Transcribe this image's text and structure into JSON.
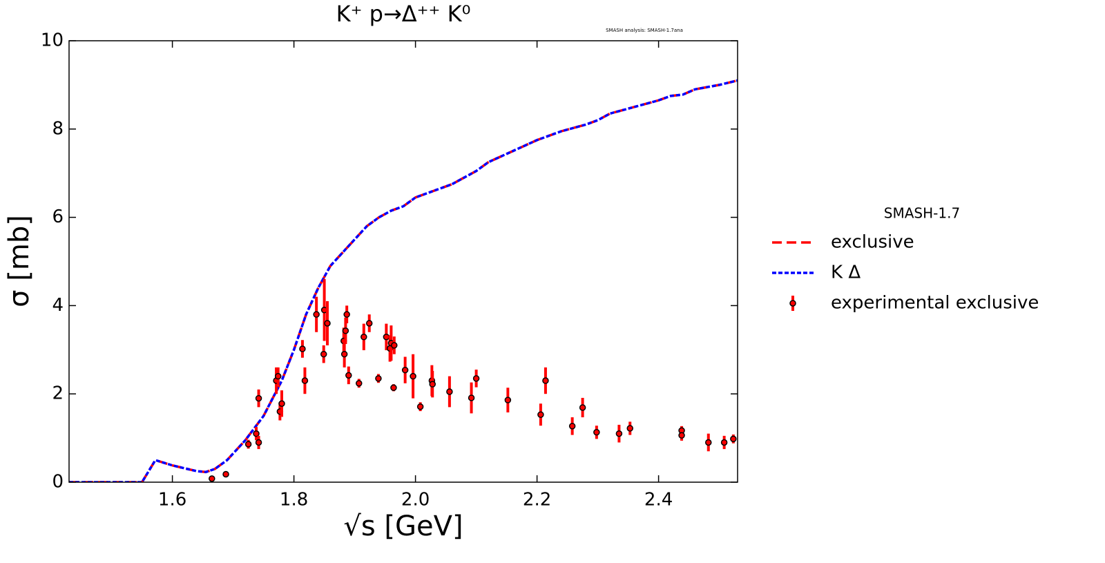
{
  "chart_data": {
    "type": "line",
    "title": "K⁺ p→Δ⁺⁺ K⁰",
    "annotation": "SMASH analysis: SMASH-1.7ana",
    "x_label": "√s [GeV]",
    "y_label": "σ [mb]",
    "legend_title": "SMASH-1.7",
    "xlim": [
      1.43,
      2.53
    ],
    "ylim": [
      0,
      10
    ],
    "xticks": [
      1.6,
      1.8,
      {
        "value": 2,
        "label": "2.0"
      },
      2.2,
      2.4
    ],
    "yticks": [
      0,
      2,
      4,
      6,
      8,
      10
    ],
    "series": [
      {
        "name": "exclusive",
        "color": "#ff0000",
        "style": "dashed",
        "x": [
          1.43,
          1.55,
          1.572,
          1.6,
          1.64,
          1.655,
          1.67,
          1.69,
          1.72,
          1.75,
          1.78,
          1.8,
          1.82,
          1.84,
          1.86,
          1.88,
          1.9,
          1.92,
          1.94,
          1.96,
          1.98,
          2.0,
          2.02,
          2.06,
          2.1,
          2.12,
          2.16,
          2.2,
          2.24,
          2.28,
          2.3,
          2.32,
          2.36,
          2.4,
          2.42,
          2.44,
          2.46,
          2.5,
          2.53
        ],
        "values": [
          0,
          0,
          0.5,
          0.38,
          0.25,
          0.23,
          0.3,
          0.5,
          0.95,
          1.5,
          2.3,
          3.0,
          3.8,
          4.4,
          4.9,
          5.2,
          5.5,
          5.8,
          6.0,
          6.15,
          6.25,
          6.45,
          6.55,
          6.75,
          7.05,
          7.25,
          7.5,
          7.75,
          7.95,
          8.1,
          8.2,
          8.35,
          8.5,
          8.65,
          8.75,
          8.78,
          8.9,
          9.0,
          9.1
        ]
      },
      {
        "name": "K Δ",
        "color": "#0000ff",
        "style": "dotted",
        "x": [
          1.43,
          1.55,
          1.572,
          1.6,
          1.64,
          1.655,
          1.67,
          1.69,
          1.72,
          1.75,
          1.78,
          1.8,
          1.82,
          1.84,
          1.86,
          1.88,
          1.9,
          1.92,
          1.94,
          1.96,
          1.98,
          2.0,
          2.02,
          2.06,
          2.1,
          2.12,
          2.16,
          2.2,
          2.24,
          2.28,
          2.3,
          2.32,
          2.36,
          2.4,
          2.42,
          2.44,
          2.46,
          2.5,
          2.53
        ],
        "values": [
          0,
          0,
          0.5,
          0.38,
          0.25,
          0.23,
          0.3,
          0.5,
          0.95,
          1.5,
          2.3,
          3.0,
          3.8,
          4.4,
          4.9,
          5.2,
          5.5,
          5.8,
          6.0,
          6.15,
          6.25,
          6.45,
          6.55,
          6.75,
          7.05,
          7.25,
          7.5,
          7.75,
          7.95,
          8.1,
          8.2,
          8.35,
          8.5,
          8.65,
          8.75,
          8.78,
          8.9,
          9.0,
          9.1
        ]
      },
      {
        "name": "experimental exclusive",
        "color": "#ff0000",
        "style": "errorbar",
        "x": [
          1.665,
          1.688,
          1.725,
          1.738,
          1.742,
          1.742,
          1.771,
          1.774,
          1.777,
          1.78,
          1.814,
          1.818,
          1.837,
          1.849,
          1.85,
          1.855,
          1.882,
          1.883,
          1.885,
          1.887,
          1.89,
          1.907,
          1.915,
          1.924,
          1.939,
          1.952,
          1.958,
          1.96,
          1.964,
          1.965,
          1.983,
          1.996,
          2.008,
          2.027,
          2.028,
          2.056,
          2.092,
          2.1,
          2.152,
          2.206,
          2.214,
          2.258,
          2.275,
          2.298,
          2.335,
          2.353,
          2.438,
          2.438,
          2.482,
          2.508,
          2.523
        ],
        "values": [
          0.08,
          0.18,
          0.86,
          1.1,
          0.9,
          1.9,
          2.3,
          2.4,
          1.6,
          1.78,
          3.02,
          2.3,
          3.8,
          2.9,
          3.9,
          3.6,
          3.2,
          2.9,
          3.43,
          3.8,
          2.42,
          2.24,
          3.29,
          3.6,
          2.35,
          3.29,
          3.03,
          3.15,
          2.14,
          3.1,
          2.54,
          2.4,
          1.71,
          2.3,
          2.22,
          2.05,
          1.91,
          2.35,
          1.86,
          1.53,
          2.3,
          1.27,
          1.69,
          1.13,
          1.1,
          1.22,
          1.17,
          1.06,
          0.9,
          0.9,
          0.98
        ],
        "errors": [
          0.02,
          0.03,
          0.1,
          0.15,
          0.15,
          0.2,
          0.3,
          0.2,
          0.2,
          0.3,
          0.2,
          0.3,
          0.4,
          0.2,
          0.7,
          0.5,
          0.3,
          0.3,
          0.3,
          0.2,
          0.2,
          0.1,
          0.3,
          0.2,
          0.1,
          0.3,
          0.3,
          0.4,
          0.08,
          0.2,
          0.3,
          0.5,
          0.1,
          0.35,
          0.3,
          0.35,
          0.35,
          0.2,
          0.28,
          0.25,
          0.3,
          0.2,
          0.22,
          0.15,
          0.2,
          0.15,
          0.1,
          0.12,
          0.2,
          0.15,
          0.1
        ]
      }
    ]
  }
}
